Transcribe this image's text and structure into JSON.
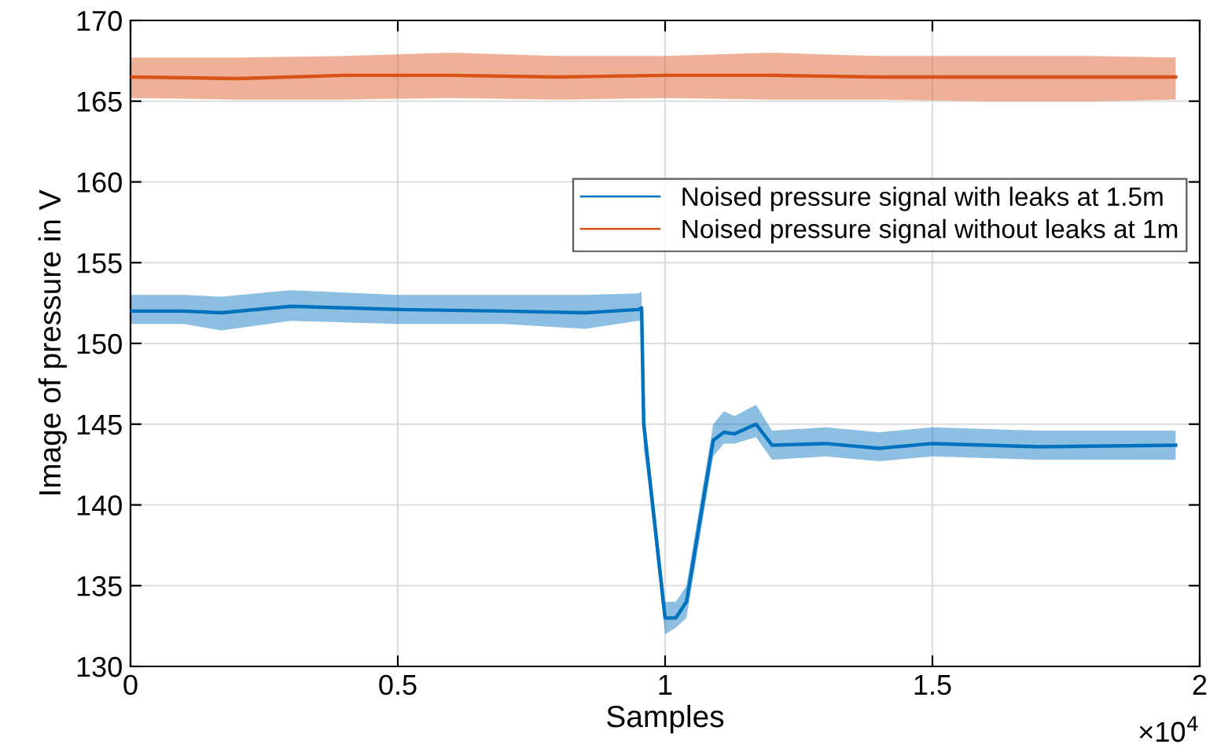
{
  "chart_data": {
    "type": "line",
    "xlabel": "Samples",
    "ylabel": "Image of pressure in V",
    "xlim": [
      0,
      2
    ],
    "ylim": [
      130,
      170
    ],
    "xticks": [
      0,
      0.5,
      1,
      1.5,
      2
    ],
    "yticks": [
      130,
      135,
      140,
      145,
      150,
      155,
      160,
      165,
      170
    ],
    "grid": true,
    "legend": "top right",
    "line_style": "solid",
    "marker": "none",
    "annotations": [
      "×10$^{4}$"
    ],
    "series": [
      {
        "name": "Noised pressure signal with leaks at 1.5m",
        "color": "#0072bd",
        "x": [
          0,
          0.1,
          0.17,
          0.3,
          0.5,
          0.7,
          0.85,
          0.95,
          0.956,
          0.96,
          0.97,
          0.99,
          1.0,
          1.02,
          1.04,
          1.06,
          1.08,
          1.09,
          1.11,
          1.13,
          1.17,
          1.2,
          1.3,
          1.4,
          1.5,
          1.7,
          1.955
        ],
        "values": [
          152,
          152,
          151.9,
          152.3,
          152.1,
          152,
          151.9,
          152.1,
          152.2,
          145,
          142,
          136,
          133,
          133,
          134,
          138,
          142,
          144,
          144.5,
          144.4,
          145,
          143.7,
          143.8,
          143.5,
          143.8,
          143.6,
          143.7
        ],
        "lower": [
          151.2,
          151.2,
          150.8,
          151.4,
          151.2,
          151.2,
          150.9,
          151.4,
          151.4,
          143.5,
          141,
          135,
          132,
          132.4,
          133,
          137,
          141,
          143,
          143.8,
          143.8,
          144.2,
          142.8,
          143,
          142.7,
          143,
          142.8,
          142.8
        ],
        "upper": [
          153,
          153,
          152.9,
          153.3,
          153,
          153,
          153,
          153.1,
          153.2,
          146.2,
          143,
          137,
          134,
          134,
          135,
          139,
          143,
          145,
          145.8,
          145.5,
          146.2,
          144.6,
          144.8,
          144.5,
          144.8,
          144.6,
          144.6
        ]
      },
      {
        "name": "Noised pressure signal without leaks at 1m",
        "color": "#d95319",
        "x": [
          0,
          0.2,
          0.4,
          0.6,
          0.8,
          1.0,
          1.2,
          1.4,
          1.6,
          1.8,
          1.955
        ],
        "values": [
          166.5,
          166.4,
          166.6,
          166.6,
          166.5,
          166.6,
          166.6,
          166.5,
          166.5,
          166.5,
          166.5
        ],
        "lower": [
          165.2,
          165.1,
          165.1,
          165.2,
          165.1,
          165.2,
          165.1,
          165.1,
          165,
          165,
          165.1
        ],
        "upper": [
          167.7,
          167.7,
          167.8,
          168,
          167.8,
          167.8,
          168,
          167.8,
          167.8,
          167.8,
          167.7
        ]
      }
    ]
  }
}
